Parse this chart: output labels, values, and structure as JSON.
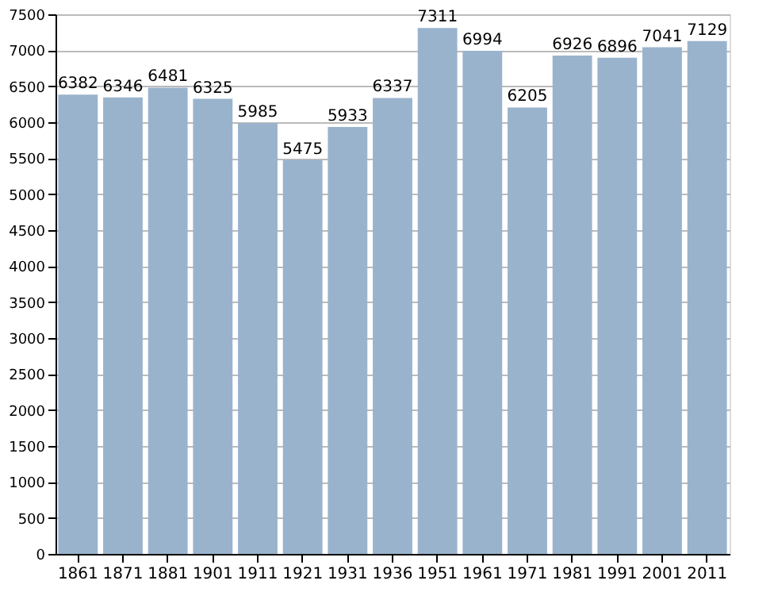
{
  "chart_data": {
    "type": "bar",
    "categories": [
      "1861",
      "1871",
      "1881",
      "1901",
      "1911",
      "1921",
      "1931",
      "1936",
      "1951",
      "1961",
      "1971",
      "1981",
      "1991",
      "2001",
      "2011"
    ],
    "values": [
      6382,
      6346,
      6481,
      6325,
      5985,
      5475,
      5933,
      6337,
      7311,
      6994,
      6205,
      6926,
      6896,
      7041,
      7129
    ],
    "color": "#9ab3cd",
    "data_labels": true,
    "grid": "y",
    "ylim": [
      0,
      7500
    ],
    "yticks": [
      0,
      500,
      1000,
      1500,
      2000,
      2500,
      3000,
      3500,
      4000,
      4500,
      5000,
      5500,
      6000,
      6500,
      7000,
      7500
    ]
  }
}
